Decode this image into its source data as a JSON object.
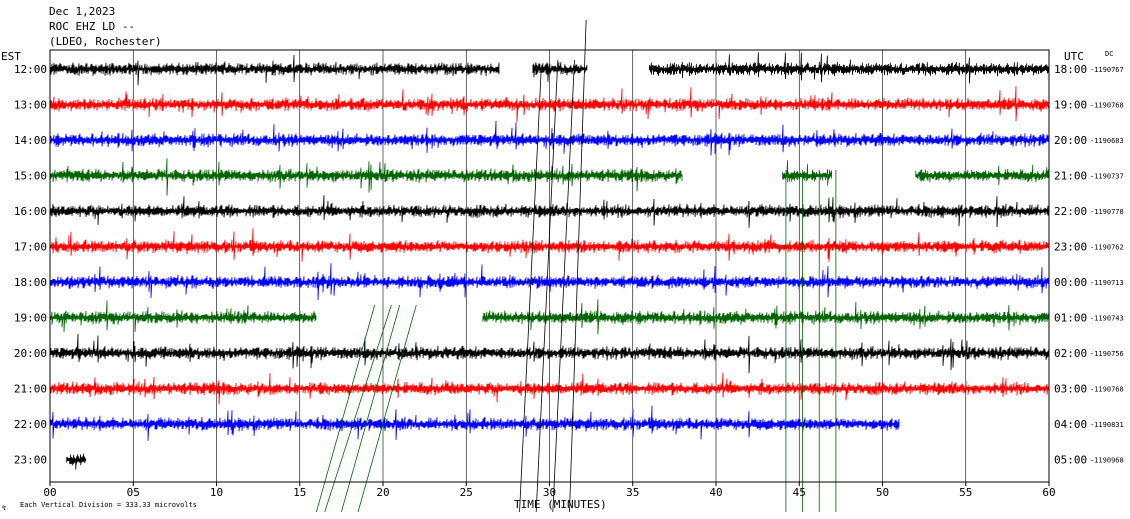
{
  "header": {
    "date": "Dec 1,2023",
    "station": "ROC EHZ LD --",
    "network": "(LDEO, Rochester)"
  },
  "footer": {
    "scale_note": "Each Vertical Division =  333.33 microvolts"
  },
  "chart_data": {
    "type": "line",
    "subtype": "helicorder",
    "xlabel": "TIME (MINUTES)",
    "x_ticks": [
      "00",
      "05",
      "10",
      "15",
      "20",
      "25",
      "30",
      "35",
      "40",
      "45",
      "50",
      "55",
      "60"
    ],
    "xlim": [
      0,
      60
    ],
    "left_axis_label": "EST",
    "right_axis_label": "UTC",
    "dc_label": "DC",
    "grid": true,
    "rows": [
      {
        "est": "12:00",
        "utc": "18:00",
        "dc": "-1190767",
        "color": "#000000",
        "segments": [
          [
            0,
            27
          ],
          [
            29,
            32.3
          ],
          [
            36,
            60
          ]
        ]
      },
      {
        "est": "13:00",
        "utc": "19:00",
        "dc": "-1190768",
        "color": "#ff0000",
        "segments": [
          [
            0,
            60
          ]
        ]
      },
      {
        "est": "14:00",
        "utc": "20:00",
        "dc": "-1190683",
        "color": "#0000ff",
        "segments": [
          [
            0,
            60
          ]
        ]
      },
      {
        "est": "15:00",
        "utc": "21:00",
        "dc": "-1190737",
        "color": "#006400",
        "segments": [
          [
            0,
            38
          ],
          [
            44,
            47
          ],
          [
            52,
            60
          ]
        ]
      },
      {
        "est": "16:00",
        "utc": "22:00",
        "dc": "-1190778",
        "color": "#000000",
        "segments": [
          [
            0,
            60
          ]
        ]
      },
      {
        "est": "17:00",
        "utc": "23:00",
        "dc": "-1190762",
        "color": "#ff0000",
        "segments": [
          [
            0,
            60
          ]
        ]
      },
      {
        "est": "18:00",
        "utc": "00:00",
        "dc": "-1190713",
        "color": "#0000ff",
        "segments": [
          [
            0,
            60
          ]
        ]
      },
      {
        "est": "19:00",
        "utc": "01:00",
        "dc": "-1190743",
        "color": "#006400",
        "segments": [
          [
            0,
            16
          ],
          [
            26,
            60
          ]
        ]
      },
      {
        "est": "20:00",
        "utc": "02:00",
        "dc": "-1190756",
        "color": "#000000",
        "segments": [
          [
            0,
            60
          ]
        ]
      },
      {
        "est": "21:00",
        "utc": "03:00",
        "dc": "-1190768",
        "color": "#ff0000",
        "segments": [
          [
            0,
            60
          ]
        ]
      },
      {
        "est": "22:00",
        "utc": "04:00",
        "dc": "-1190831",
        "color": "#0000ff",
        "segments": [
          [
            0,
            51
          ]
        ]
      },
      {
        "est": "23:00",
        "utc": "05:00",
        "dc": "-1190968",
        "color": "#000000",
        "segments": [
          [
            1,
            2.2
          ]
        ]
      }
    ]
  }
}
